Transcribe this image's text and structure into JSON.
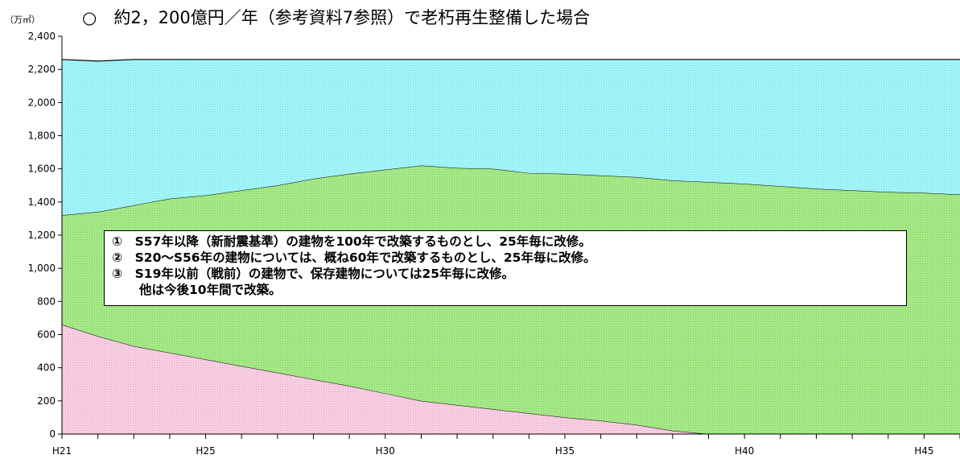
{
  "title": "○　約2，200億円／年（参考資料7参照）で老朽再生整備した場合",
  "unit_label": "（万㎡）",
  "notes": [
    "①　S57年以降（新耐震基準）の建物を100年で改築するものとし、25年毎に改修。",
    "②　S20～S56年の建物については、概ね60年で改築するものとし、25年毎に改修。",
    "③　S19年以前（戦前）の建物で、保存建物については25年毎に改修。",
    "他は今後10年間で改築。"
  ],
  "colors": {
    "pink": "#f7cfe3",
    "green": "#a8e88a",
    "cyan": "#a6f4f8"
  },
  "chart_data": {
    "type": "area",
    "stacked": true,
    "x": [
      "H21",
      "H22",
      "H23",
      "H24",
      "H25",
      "H26",
      "H27",
      "H28",
      "H29",
      "H30",
      "H31",
      "H32",
      "H33",
      "H34",
      "H35",
      "H36",
      "H37",
      "H38",
      "H39",
      "H40",
      "H41",
      "H42",
      "H43",
      "H44",
      "H45",
      "H46"
    ],
    "x_tick_labels": [
      "H21",
      "H25",
      "H30",
      "H35",
      "H40",
      "H45"
    ],
    "ylim": [
      0,
      2400
    ],
    "y_ticks": [
      "0",
      "200",
      "400",
      "600",
      "800",
      "1,000",
      "1,200",
      "1,400",
      "1,600",
      "1,800",
      "2,000",
      "2,200",
      "2,400"
    ],
    "ylabel": "（万㎡）",
    "grid": false,
    "legend": null,
    "series": [
      {
        "values": [
          660,
          590,
          530,
          490,
          450,
          410,
          370,
          330,
          290,
          245,
          200,
          175,
          150,
          125,
          100,
          80,
          55,
          20,
          0,
          0,
          0,
          0,
          0,
          0,
          0,
          0
        ]
      },
      {
        "values": [
          660,
          750,
          850,
          930,
          990,
          1060,
          1130,
          1210,
          1280,
          1350,
          1420,
          1430,
          1450,
          1450,
          1470,
          1480,
          1495,
          1510,
          1520,
          1510,
          1495,
          1480,
          1470,
          1460,
          1455,
          1445
        ]
      },
      {
        "values": [
          940,
          910,
          880,
          840,
          820,
          790,
          760,
          720,
          690,
          665,
          640,
          655,
          660,
          685,
          690,
          700,
          710,
          730,
          740,
          750,
          765,
          780,
          790,
          800,
          805,
          815
        ]
      }
    ]
  }
}
